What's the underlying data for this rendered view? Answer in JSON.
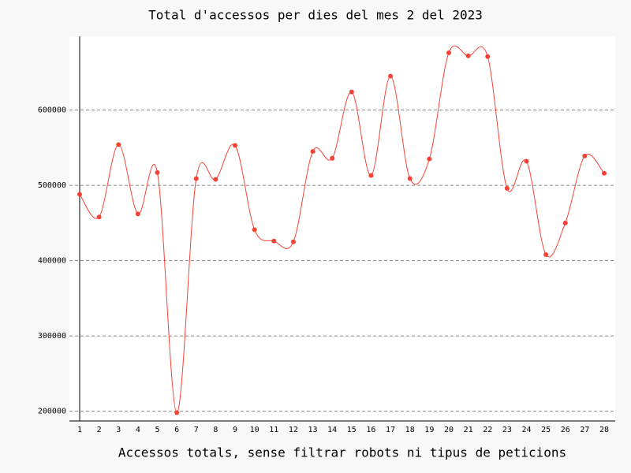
{
  "chart_data": {
    "type": "line",
    "title": "Total d'accessos per dies del mes 2 del 2023",
    "x_label": "Accessos totals, sense filtrar robots ni tipus de peticions",
    "categories": [
      "1",
      "2",
      "3",
      "4",
      "5",
      "6",
      "7",
      "8",
      "9",
      "10",
      "11",
      "12",
      "13",
      "14",
      "15",
      "16",
      "17",
      "18",
      "19",
      "20",
      "21",
      "22",
      "23",
      "24",
      "25",
      "26",
      "27",
      "28"
    ],
    "values": [
      488000,
      458000,
      554000,
      462000,
      517000,
      198000,
      509000,
      508000,
      553000,
      441000,
      426000,
      425000,
      545000,
      536000,
      624000,
      513000,
      645000,
      509000,
      535000,
      676000,
      672000,
      671000,
      496000,
      532000,
      408000,
      450000,
      539000,
      516000
    ],
    "color": "#f44336",
    "ylim": [
      187000,
      698000
    ],
    "yticks": [
      200000,
      300000,
      400000,
      500000,
      600000
    ],
    "grid": true
  }
}
